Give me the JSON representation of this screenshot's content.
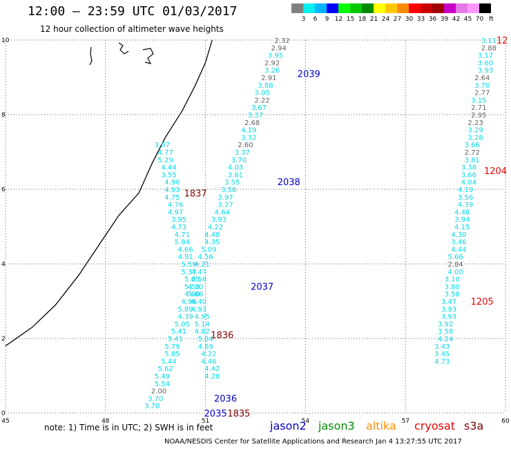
{
  "header": {
    "title": "12:00 – 23:59 UTC 01/03/2017",
    "subtitle": "12 hour collection of altimeter wave heights"
  },
  "scale": {
    "colors": [
      "#808080",
      "#00f0f0",
      "#00b4ff",
      "#0000ff",
      "#00ff00",
      "#00c800",
      "#008c00",
      "#ffff00",
      "#ffc800",
      "#ff8c00",
      "#ff0000",
      "#c80000",
      "#a00000",
      "#c800c8",
      "#e678e6",
      "#ff96ff",
      "#000000"
    ],
    "labels": [
      "",
      "3",
      "6",
      "9",
      "12",
      "15",
      "18",
      "21",
      "24",
      "27",
      "30",
      "33",
      "36",
      "39",
      "42",
      "45",
      "70",
      "ft"
    ]
  },
  "axes": {
    "x_ticks": [
      "45",
      "48",
      "51",
      "54",
      "57",
      "60"
    ],
    "y_ticks": [
      "0",
      "2",
      "4",
      "6",
      "8",
      "10"
    ]
  },
  "chart_data": {
    "type": "scatter",
    "description_units": "longitude (x, degrees) vs latitude (y, degrees)",
    "xlim": [
      45,
      60
    ],
    "ylim": [
      0,
      10
    ],
    "grid": true,
    "labels": [
      {
        "x": 53.3,
        "y": 10.0,
        "v": "2.32",
        "c": "gray"
      },
      {
        "x": 53.2,
        "y": 9.8,
        "v": "2.94",
        "c": "gray"
      },
      {
        "x": 53.1,
        "y": 9.6,
        "v": "3.95",
        "c": "cyan"
      },
      {
        "x": 53.0,
        "y": 9.4,
        "v": "2.92",
        "c": "gray"
      },
      {
        "x": 53.0,
        "y": 9.2,
        "v": "3.26",
        "c": "cyan"
      },
      {
        "x": 52.9,
        "y": 9.0,
        "v": "2.91",
        "c": "gray"
      },
      {
        "x": 52.8,
        "y": 8.8,
        "v": "3.88",
        "c": "cyan"
      },
      {
        "x": 52.7,
        "y": 8.6,
        "v": "3.05",
        "c": "cyan"
      },
      {
        "x": 52.7,
        "y": 8.4,
        "v": "2.22",
        "c": "gray"
      },
      {
        "x": 52.6,
        "y": 8.2,
        "v": "3.67",
        "c": "cyan"
      },
      {
        "x": 52.5,
        "y": 8.0,
        "v": "3.37",
        "c": "cyan"
      },
      {
        "x": 52.4,
        "y": 7.8,
        "v": "2.68",
        "c": "gray"
      },
      {
        "x": 52.3,
        "y": 7.6,
        "v": "4.19",
        "c": "cyan"
      },
      {
        "x": 52.3,
        "y": 7.4,
        "v": "3.32",
        "c": "cyan"
      },
      {
        "x": 52.2,
        "y": 7.2,
        "v": "2.60",
        "c": "gray"
      },
      {
        "x": 52.1,
        "y": 7.0,
        "v": "3.37",
        "c": "cyan"
      },
      {
        "x": 52.0,
        "y": 6.8,
        "v": "3.70",
        "c": "cyan"
      },
      {
        "x": 51.9,
        "y": 6.6,
        "v": "4.03",
        "c": "cyan"
      },
      {
        "x": 51.9,
        "y": 6.4,
        "v": "3.61",
        "c": "cyan"
      },
      {
        "x": 51.8,
        "y": 6.2,
        "v": "3.55",
        "c": "cyan"
      },
      {
        "x": 51.7,
        "y": 6.0,
        "v": "3.58",
        "c": "cyan"
      },
      {
        "x": 51.6,
        "y": 5.8,
        "v": "3.97",
        "c": "cyan"
      },
      {
        "x": 51.6,
        "y": 5.6,
        "v": "3.27",
        "c": "cyan"
      },
      {
        "x": 51.5,
        "y": 5.4,
        "v": "4.64",
        "c": "cyan"
      },
      {
        "x": 51.4,
        "y": 5.2,
        "v": "3.93",
        "c": "cyan"
      },
      {
        "x": 51.3,
        "y": 5.0,
        "v": "4.22",
        "c": "cyan"
      },
      {
        "x": 51.2,
        "y": 4.8,
        "v": "4.48",
        "c": "cyan"
      },
      {
        "x": 51.2,
        "y": 4.6,
        "v": "4.35",
        "c": "cyan"
      },
      {
        "x": 51.1,
        "y": 4.4,
        "v": "5.09",
        "c": "cyan"
      },
      {
        "x": 51.0,
        "y": 4.2,
        "v": "4.56",
        "c": "cyan"
      },
      {
        "x": 50.9,
        "y": 4.0,
        "v": "4.21",
        "c": "cyan"
      },
      {
        "x": 50.8,
        "y": 3.8,
        "v": "4.47",
        "c": "cyan"
      },
      {
        "x": 50.8,
        "y": 3.6,
        "v": "4.56",
        "c": "cyan"
      },
      {
        "x": 50.7,
        "y": 3.4,
        "v": "4.10",
        "c": "cyan"
      },
      {
        "x": 50.6,
        "y": 3.2,
        "v": "4.60",
        "c": "cyan"
      },
      {
        "x": 50.5,
        "y": 3.0,
        "v": "4.99",
        "c": "cyan"
      },
      {
        "x": 50.4,
        "y": 2.8,
        "v": "5.89",
        "c": "cyan"
      },
      {
        "x": 50.4,
        "y": 2.6,
        "v": "4.39",
        "c": "cyan"
      },
      {
        "x": 50.3,
        "y": 2.4,
        "v": "5.05",
        "c": "cyan"
      },
      {
        "x": 50.2,
        "y": 2.2,
        "v": "5.41",
        "c": "cyan"
      },
      {
        "x": 50.1,
        "y": 2.0,
        "v": "5.41",
        "c": "cyan"
      },
      {
        "x": 50.0,
        "y": 1.8,
        "v": "5.79",
        "c": "cyan"
      },
      {
        "x": 50.0,
        "y": 1.6,
        "v": "5.85",
        "c": "cyan"
      },
      {
        "x": 49.9,
        "y": 1.4,
        "v": "5.44",
        "c": "cyan"
      },
      {
        "x": 49.8,
        "y": 1.2,
        "v": "5.62",
        "c": "cyan"
      },
      {
        "x": 49.7,
        "y": 1.0,
        "v": "5.49",
        "c": "cyan"
      },
      {
        "x": 49.7,
        "y": 0.8,
        "v": "5.54",
        "c": "cyan"
      },
      {
        "x": 49.6,
        "y": 0.6,
        "v": "2.00",
        "c": "gray"
      },
      {
        "x": 49.5,
        "y": 0.4,
        "v": "3.70",
        "c": "cyan"
      },
      {
        "x": 49.4,
        "y": 0.2,
        "v": "3.70",
        "c": "cyan"
      },
      {
        "x": 49.7,
        "y": 7.2,
        "v": "3.07",
        "c": "cyan"
      },
      {
        "x": 49.8,
        "y": 7.0,
        "v": "4.77",
        "c": "cyan"
      },
      {
        "x": 49.8,
        "y": 6.8,
        "v": "5.29",
        "c": "cyan"
      },
      {
        "x": 49.9,
        "y": 6.6,
        "v": "4.44",
        "c": "cyan"
      },
      {
        "x": 49.9,
        "y": 6.4,
        "v": "3.55",
        "c": "cyan"
      },
      {
        "x": 50.0,
        "y": 6.2,
        "v": "4.90",
        "c": "cyan"
      },
      {
        "x": 50.0,
        "y": 6.0,
        "v": "4.93",
        "c": "cyan"
      },
      {
        "x": 50.0,
        "y": 5.8,
        "v": "4.75",
        "c": "cyan"
      },
      {
        "x": 50.1,
        "y": 5.6,
        "v": "4.76",
        "c": "cyan"
      },
      {
        "x": 50.1,
        "y": 5.4,
        "v": "4.97",
        "c": "cyan"
      },
      {
        "x": 50.2,
        "y": 5.2,
        "v": "3.95",
        "c": "cyan"
      },
      {
        "x": 50.2,
        "y": 5.0,
        "v": "4.73",
        "c": "cyan"
      },
      {
        "x": 50.3,
        "y": 4.8,
        "v": "4.71",
        "c": "cyan"
      },
      {
        "x": 50.3,
        "y": 4.6,
        "v": "5.84",
        "c": "cyan"
      },
      {
        "x": 50.4,
        "y": 4.4,
        "v": "4.66",
        "c": "cyan"
      },
      {
        "x": 50.4,
        "y": 4.2,
        "v": "4.91",
        "c": "cyan"
      },
      {
        "x": 50.5,
        "y": 4.0,
        "v": "5.59",
        "c": "cyan"
      },
      {
        "x": 50.5,
        "y": 3.8,
        "v": "5.37",
        "c": "cyan"
      },
      {
        "x": 50.6,
        "y": 3.6,
        "v": "5.05",
        "c": "cyan"
      },
      {
        "x": 50.6,
        "y": 3.4,
        "v": "5.53",
        "c": "cyan"
      },
      {
        "x": 50.7,
        "y": 3.2,
        "v": "5.66",
        "c": "cyan"
      },
      {
        "x": 50.8,
        "y": 3.0,
        "v": "6.40",
        "c": "cyan"
      },
      {
        "x": 50.8,
        "y": 2.8,
        "v": "4.93",
        "c": "cyan"
      },
      {
        "x": 50.9,
        "y": 2.6,
        "v": "4.95",
        "c": "cyan"
      },
      {
        "x": 50.9,
        "y": 2.4,
        "v": "5.14",
        "c": "cyan"
      },
      {
        "x": 50.9,
        "y": 2.2,
        "v": "4.82",
        "c": "cyan"
      },
      {
        "x": 51.0,
        "y": 2.0,
        "v": "5.04",
        "c": "cyan"
      },
      {
        "x": 51.0,
        "y": 1.8,
        "v": "4.69",
        "c": "cyan"
      },
      {
        "x": 51.1,
        "y": 1.6,
        "v": "4.22",
        "c": "cyan"
      },
      {
        "x": 51.1,
        "y": 1.4,
        "v": "4.46",
        "c": "cyan"
      },
      {
        "x": 51.2,
        "y": 1.2,
        "v": "4.42",
        "c": "cyan"
      },
      {
        "x": 51.2,
        "y": 1.0,
        "v": "4.28",
        "c": "cyan"
      },
      {
        "x": 59.5,
        "y": 10.0,
        "v": "3.11",
        "c": "cyan"
      },
      {
        "x": 59.5,
        "y": 9.8,
        "v": "2.88",
        "c": "gray"
      },
      {
        "x": 59.4,
        "y": 9.6,
        "v": "3.17",
        "c": "cyan"
      },
      {
        "x": 59.4,
        "y": 9.4,
        "v": "3.60",
        "c": "cyan"
      },
      {
        "x": 59.4,
        "y": 9.2,
        "v": "3.93",
        "c": "cyan"
      },
      {
        "x": 59.3,
        "y": 9.0,
        "v": "2.64",
        "c": "gray"
      },
      {
        "x": 59.3,
        "y": 8.8,
        "v": "3.70",
        "c": "cyan"
      },
      {
        "x": 59.3,
        "y": 8.6,
        "v": "2.77",
        "c": "gray"
      },
      {
        "x": 59.2,
        "y": 8.4,
        "v": "3.15",
        "c": "cyan"
      },
      {
        "x": 59.2,
        "y": 8.2,
        "v": "2.71",
        "c": "gray"
      },
      {
        "x": 59.2,
        "y": 8.0,
        "v": "2.95",
        "c": "gray"
      },
      {
        "x": 59.1,
        "y": 7.8,
        "v": "2.23",
        "c": "gray"
      },
      {
        "x": 59.1,
        "y": 7.6,
        "v": "3.29",
        "c": "cyan"
      },
      {
        "x": 59.1,
        "y": 7.4,
        "v": "3.28",
        "c": "cyan"
      },
      {
        "x": 59.0,
        "y": 7.2,
        "v": "3.66",
        "c": "cyan"
      },
      {
        "x": 59.0,
        "y": 7.0,
        "v": "2.72",
        "c": "gray"
      },
      {
        "x": 59.0,
        "y": 6.8,
        "v": "3.81",
        "c": "cyan"
      },
      {
        "x": 58.9,
        "y": 6.6,
        "v": "3.38",
        "c": "cyan"
      },
      {
        "x": 58.9,
        "y": 6.4,
        "v": "3.66",
        "c": "cyan"
      },
      {
        "x": 58.9,
        "y": 6.2,
        "v": "4.04",
        "c": "cyan"
      },
      {
        "x": 58.8,
        "y": 6.0,
        "v": "4.19",
        "c": "cyan"
      },
      {
        "x": 58.8,
        "y": 5.8,
        "v": "3.56",
        "c": "cyan"
      },
      {
        "x": 58.8,
        "y": 5.6,
        "v": "4.39",
        "c": "cyan"
      },
      {
        "x": 58.7,
        "y": 5.4,
        "v": "4.48",
        "c": "cyan"
      },
      {
        "x": 58.7,
        "y": 5.2,
        "v": "3.94",
        "c": "cyan"
      },
      {
        "x": 58.7,
        "y": 5.0,
        "v": "4.15",
        "c": "cyan"
      },
      {
        "x": 58.6,
        "y": 4.8,
        "v": "4.30",
        "c": "cyan"
      },
      {
        "x": 58.6,
        "y": 4.6,
        "v": "3.46",
        "c": "cyan"
      },
      {
        "x": 58.6,
        "y": 4.4,
        "v": "4.44",
        "c": "cyan"
      },
      {
        "x": 58.5,
        "y": 4.2,
        "v": "5.66",
        "c": "cyan"
      },
      {
        "x": 58.5,
        "y": 4.0,
        "v": "2.84",
        "c": "gray"
      },
      {
        "x": 58.5,
        "y": 3.8,
        "v": "4.00",
        "c": "cyan"
      },
      {
        "x": 58.4,
        "y": 3.6,
        "v": "3.10",
        "c": "cyan"
      },
      {
        "x": 58.4,
        "y": 3.4,
        "v": "3.80",
        "c": "cyan"
      },
      {
        "x": 58.4,
        "y": 3.2,
        "v": "3.58",
        "c": "cyan"
      },
      {
        "x": 58.3,
        "y": 3.0,
        "v": "3.47",
        "c": "cyan"
      },
      {
        "x": 58.3,
        "y": 2.8,
        "v": "3.93",
        "c": "cyan"
      },
      {
        "x": 58.3,
        "y": 2.6,
        "v": "3.93",
        "c": "cyan"
      },
      {
        "x": 58.2,
        "y": 2.4,
        "v": "3.92",
        "c": "cyan"
      },
      {
        "x": 58.2,
        "y": 2.2,
        "v": "3.58",
        "c": "cyan"
      },
      {
        "x": 58.2,
        "y": 2.0,
        "v": "4.24",
        "c": "cyan"
      },
      {
        "x": 58.1,
        "y": 1.8,
        "v": "3.43",
        "c": "cyan"
      },
      {
        "x": 58.1,
        "y": 1.6,
        "v": "3.45",
        "c": "cyan"
      },
      {
        "x": 58.1,
        "y": 1.4,
        "v": "4.73",
        "c": "cyan"
      }
    ],
    "passes": [
      {
        "x": 54.1,
        "y": 9.1,
        "v": "2039",
        "c": "jason2"
      },
      {
        "x": 53.5,
        "y": 6.2,
        "v": "2038",
        "c": "jason2"
      },
      {
        "x": 52.7,
        "y": 3.4,
        "v": "2037",
        "c": "jason2"
      },
      {
        "x": 51.6,
        "y": 0.4,
        "v": "2036",
        "c": "jason2"
      },
      {
        "x": 51.3,
        "y": 0.0,
        "v": "2035",
        "c": "jason2"
      },
      {
        "x": 50.7,
        "y": 5.9,
        "v": "1837",
        "c": "s3a"
      },
      {
        "x": 51.5,
        "y": 2.1,
        "v": "1836",
        "c": "s3a"
      },
      {
        "x": 52.0,
        "y": 0.0,
        "v": "1835",
        "c": "s3a"
      },
      {
        "x": 59.7,
        "y": 6.5,
        "v": "1204",
        "c": "cryosat"
      },
      {
        "x": 59.3,
        "y": 3.0,
        "v": "1205",
        "c": "cryosat"
      },
      {
        "x": 59.9,
        "y": 10.0,
        "v": "12",
        "c": "cryosat"
      }
    ],
    "coastline": [
      [
        45.0,
        1.8
      ],
      [
        45.8,
        2.3
      ],
      [
        46.5,
        2.9
      ],
      [
        47.2,
        3.7
      ],
      [
        47.8,
        4.5
      ],
      [
        48.4,
        5.3
      ],
      [
        49.0,
        5.9
      ],
      [
        49.4,
        6.7
      ],
      [
        49.8,
        7.4
      ],
      [
        50.3,
        8.1
      ],
      [
        50.7,
        8.8
      ],
      [
        51.0,
        9.4
      ],
      [
        51.2,
        10.0
      ]
    ],
    "series": [
      {
        "name": "jason2",
        "color": "#0000c8"
      },
      {
        "name": "jason3",
        "color": "#008c00"
      },
      {
        "name": "altika",
        "color": "#ff8c00"
      },
      {
        "name": "cryosat",
        "color": "#e60000"
      },
      {
        "name": "s3a",
        "color": "#800000"
      }
    ]
  },
  "colors": {
    "cyan": "#00d8e8",
    "gray": "#606060",
    "jason2": "#0000c8",
    "jason3": "#008c00",
    "altika": "#ff8c00",
    "cryosat": "#e60000",
    "s3a": "#800000"
  },
  "legend": {
    "note": "note:  1) Time is in UTC;  2) SWH is in feet",
    "items": [
      {
        "label": "jason2",
        "color": "#0000c8"
      },
      {
        "label": "jason3",
        "color": "#008c00"
      },
      {
        "label": "altika",
        "color": "#ff8c00"
      },
      {
        "label": "cryosat",
        "color": "#e60000"
      },
      {
        "label": "s3a",
        "color": "#800000"
      }
    ]
  },
  "footer": "NOAA/NESDIS Center for Satellite Applications and Research    Jan  4 13:27:55 UTC 2017"
}
